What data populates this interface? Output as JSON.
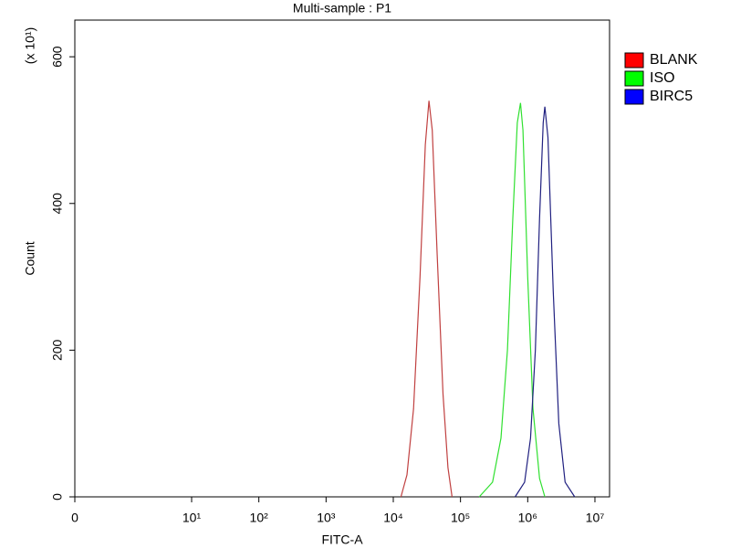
{
  "chart_data": {
    "type": "line",
    "title": "Multi-sample : P1",
    "xlabel": "FITC-A",
    "ylabel": "Count",
    "ylabel_multiplier": "(x 10¹)",
    "xscale": "biexponential",
    "xlim": [
      0,
      16500000
    ],
    "ylim": [
      0,
      650
    ],
    "xticks": [
      0,
      {
        "value": 10,
        "label": "10¹"
      },
      {
        "value": 100,
        "label": "10²"
      },
      {
        "value": 1000,
        "label": "10³"
      },
      {
        "value": 10000,
        "label": "10⁴"
      },
      {
        "value": 100000,
        "label": "10⁵"
      },
      {
        "value": 1000000,
        "label": "10⁶"
      },
      {
        "value": 10000000,
        "label": "10⁷"
      }
    ],
    "yticks": [
      0,
      200,
      400,
      600
    ],
    "legend": "right",
    "series": [
      {
        "name": "BLANK",
        "color": "#ff0000",
        "line_color": "#c04040",
        "x": [
          13000,
          16000,
          20000,
          25000,
          30000,
          34000,
          38000,
          45000,
          55000,
          65000,
          75000
        ],
        "values": [
          0,
          30,
          120,
          300,
          480,
          540,
          500,
          330,
          140,
          40,
          0
        ]
      },
      {
        "name": "ISO",
        "color": "#00ff00",
        "line_color": "#30e030",
        "x": [
          190000,
          300000,
          400000,
          500000,
          600000,
          700000,
          780000,
          850000,
          1000000,
          1200000,
          1500000,
          1800000
        ],
        "values": [
          0,
          20,
          80,
          200,
          380,
          510,
          537,
          500,
          300,
          120,
          25,
          0
        ]
      },
      {
        "name": "BIRC5",
        "color": "#0000ff",
        "line_color": "#202080",
        "x": [
          650000,
          900000,
          1100000,
          1300000,
          1500000,
          1700000,
          1800000,
          2000000,
          2400000,
          2900000,
          3600000,
          5000000
        ],
        "values": [
          0,
          20,
          80,
          200,
          380,
          510,
          532,
          490,
          280,
          100,
          20,
          0
        ]
      }
    ]
  }
}
